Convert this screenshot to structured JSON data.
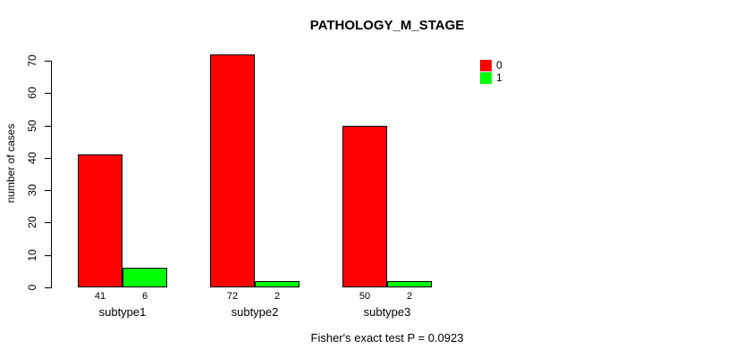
{
  "chart_data": {
    "type": "bar",
    "title": "PATHOLOGY_M_STAGE",
    "categories": [
      "subtype1",
      "subtype2",
      "subtype3"
    ],
    "series": [
      {
        "name": "0",
        "color": "#ff0000",
        "values": [
          41,
          72,
          50
        ]
      },
      {
        "name": "1",
        "color": "#00ff00",
        "values": [
          6,
          2,
          2
        ]
      }
    ],
    "xlabel": "",
    "ylabel": "number of cases",
    "ylim": [
      0,
      70
    ],
    "yticks": [
      0,
      10,
      20,
      30,
      40,
      50,
      60,
      70
    ],
    "grid": false,
    "legend_position": "top-right",
    "bar_value_labels": [
      [
        41,
        72,
        50
      ],
      [
        6,
        2,
        2
      ]
    ],
    "annotation": "Fisher's exact test P = 0.0923"
  }
}
